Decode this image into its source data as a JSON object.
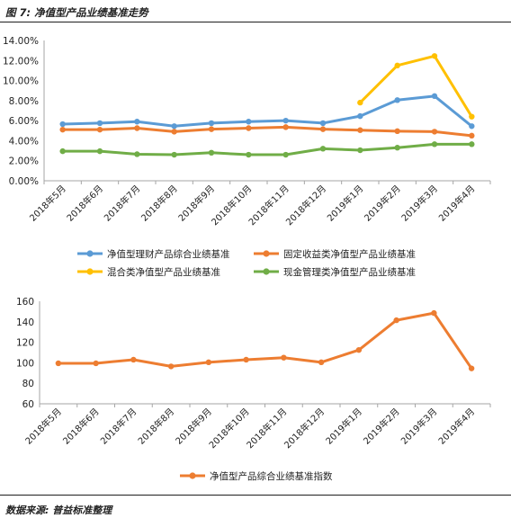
{
  "figure_title": "图 7:  净值型产品业绩基准走势",
  "source_note": "数据来源:  普益标准整理",
  "chart_data": [
    {
      "type": "line",
      "categories": [
        "2018年5月",
        "2018年6月",
        "2018年7月",
        "2018年8月",
        "2018年9月",
        "2018年10月",
        "2018年11月",
        "2018年12月",
        "2019年1月",
        "2019年2月",
        "2019年3月",
        "2019年4月"
      ],
      "ylim": [
        0,
        14
      ],
      "yticks": [
        "0.00%",
        "2.00%",
        "4.00%",
        "6.00%",
        "8.00%",
        "10.00%",
        "12.00%",
        "14.00%"
      ],
      "legend_position": "bottom",
      "series": [
        {
          "name": "净值型理财产品综合业绩基准",
          "color": "#5b9bd5",
          "values": [
            5.65,
            5.75,
            5.9,
            5.45,
            5.75,
            5.9,
            6.0,
            5.75,
            6.45,
            8.05,
            8.45,
            5.45
          ]
        },
        {
          "name": "固定收益类净值型产品业绩基准",
          "color": "#ed7d31",
          "values": [
            5.1,
            5.1,
            5.25,
            4.9,
            5.15,
            5.25,
            5.35,
            5.15,
            5.05,
            4.95,
            4.9,
            4.5
          ]
        },
        {
          "name": "混合类净值型产品业绩基准",
          "color": "#ffc000",
          "values": [
            null,
            null,
            null,
            null,
            null,
            null,
            null,
            null,
            7.8,
            11.5,
            12.45,
            6.4
          ]
        },
        {
          "name": "现金管理类净值型产品业绩基准",
          "color": "#70ad47",
          "values": [
            2.95,
            2.95,
            2.65,
            2.6,
            2.8,
            2.6,
            2.6,
            3.2,
            3.05,
            3.3,
            3.65,
            3.65
          ]
        }
      ]
    },
    {
      "type": "line",
      "categories": [
        "2018年5月",
        "2018年6月",
        "2018年7月",
        "2018年8月",
        "2018年9月",
        "2018年10月",
        "2018年11月",
        "2018年12月",
        "2019年1月",
        "2019年2月",
        "2019年3月",
        "2019年4月"
      ],
      "ylim": [
        60,
        160
      ],
      "yticks": [
        "60",
        "80",
        "100",
        "120",
        "140",
        "160"
      ],
      "legend_position": "bottom",
      "series": [
        {
          "name": "净值型产品综合业绩基准指数",
          "color": "#ed7d31",
          "values": [
            99.5,
            99.5,
            103,
            96.5,
            100.5,
            103,
            105,
            100.5,
            112.5,
            141.5,
            148.5,
            94.5
          ]
        }
      ]
    }
  ]
}
